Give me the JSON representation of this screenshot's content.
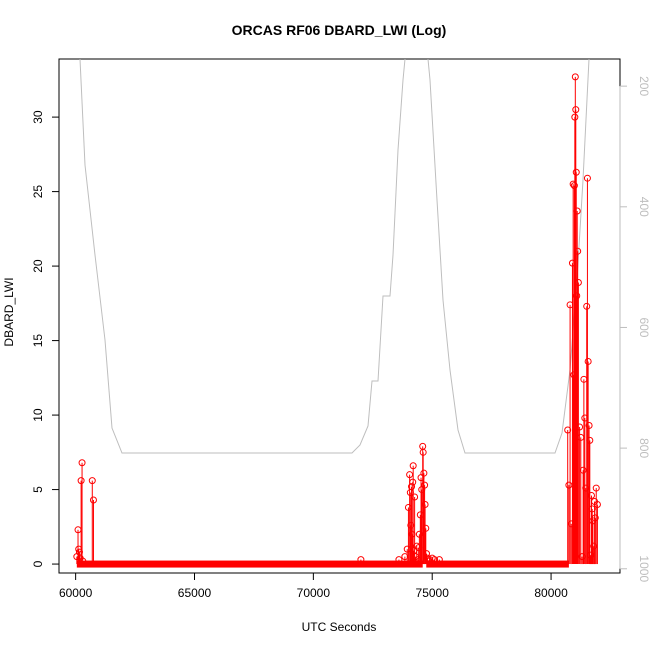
{
  "chart_data": {
    "type": "scatter",
    "title": "ORCAS RF06 DBARD_LWI (Log)",
    "xlabel": "UTC Seconds",
    "ylabel": "DBARD_LWI",
    "xlim": [
      59300,
      82900
    ],
    "ylim": [
      -0.6,
      33.9
    ],
    "x_ticks": [
      60000,
      65000,
      70000,
      75000,
      80000
    ],
    "y_ticks": [
      0,
      5,
      10,
      15,
      20,
      25,
      30
    ],
    "y2_ticks": [
      200,
      400,
      600,
      800,
      1000
    ],
    "y2lim": [
      1007,
      155
    ],
    "grid": false,
    "colors": {
      "series": "#ff0000",
      "secondary": "#bebebe"
    },
    "series": [
      {
        "marker": "open-circle",
        "connected": true,
        "x": [
          60050,
          60100,
          60130,
          60160,
          60190,
          60230,
          60270,
          60300,
          60700,
          60750,
          72000,
          73600,
          73850,
          73950,
          74000,
          74050,
          74080,
          74100,
          74130,
          74150,
          74180,
          74200,
          74230,
          74260,
          74300,
          74350,
          74400,
          74430,
          74460,
          74500,
          74530,
          74560,
          74600,
          74620,
          74650,
          74680,
          74700,
          74730,
          74760,
          74800,
          74850,
          74900,
          75000,
          75100,
          75300,
          80700,
          80750,
          80800,
          80850,
          80900,
          80930,
          80960,
          80980,
          81000,
          81020,
          81040,
          81060,
          81080,
          81100,
          81120,
          81150,
          81200,
          81250,
          81300,
          81350,
          81380,
          81420,
          81460,
          81500,
          81530,
          81560,
          81600,
          81630,
          81660,
          81700,
          81730,
          81760,
          81800,
          81830,
          81860,
          81900,
          81950
        ],
        "y": [
          0.5,
          2.3,
          1.0,
          0.8,
          0.4,
          5.6,
          6.8,
          0.2,
          5.6,
          4.3,
          0.3,
          0.3,
          0.5,
          1.0,
          3.8,
          6.0,
          4.8,
          2.6,
          5.2,
          2.0,
          5.5,
          6.6,
          0.9,
          4.5,
          0.5,
          1.2,
          0.3,
          1.1,
          2.0,
          3.3,
          5.8,
          5.0,
          7.9,
          7.5,
          6.1,
          5.3,
          4.0,
          2.4,
          0.7,
          0.4,
          0.2,
          0.3,
          0.4,
          0.3,
          0.3,
          9.0,
          5.3,
          17.4,
          2.7,
          20.2,
          25.5,
          12.7,
          25.4,
          30.0,
          32.7,
          30.5,
          26.3,
          18.0,
          23.7,
          21.0,
          18.9,
          9.2,
          8.5,
          0.5,
          6.3,
          12.4,
          9.8,
          5.1,
          17.3,
          25.9,
          13.6,
          9.3,
          8.3,
          0.6,
          4.6,
          3.7,
          2.9,
          1.2,
          4.2,
          3.1,
          5.1,
          4.0
        ]
      }
    ]
  }
}
